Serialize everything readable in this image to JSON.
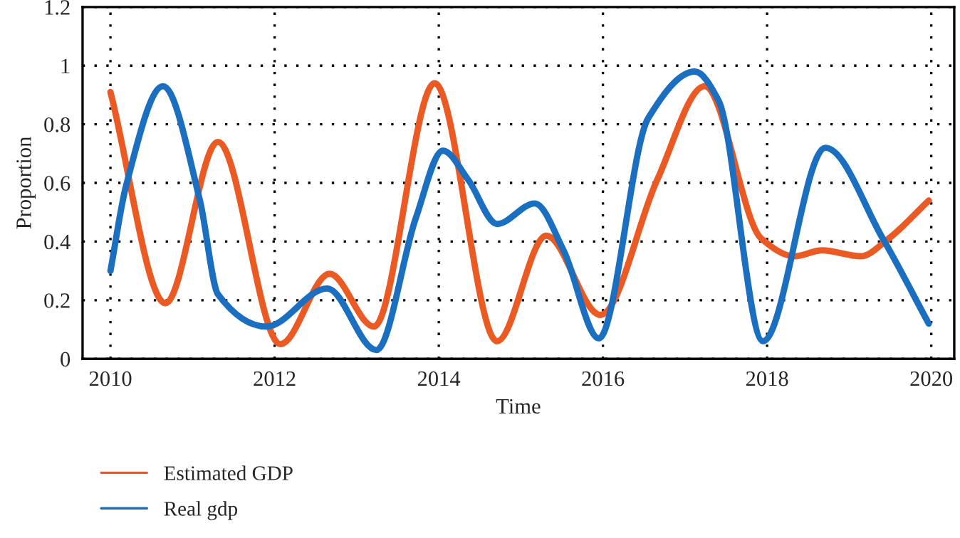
{
  "chart_data": {
    "type": "line",
    "xlabel": "Time",
    "ylabel": "Proportion",
    "xlim": [
      2009.66,
      2020.28
    ],
    "ylim": [
      0,
      1.2
    ],
    "xticks": [
      2010,
      2012,
      2014,
      2016,
      2018,
      2020
    ],
    "yticks": [
      0,
      0.2,
      0.4,
      0.6,
      0.8,
      1,
      1.2
    ],
    "grid": true,
    "legend": "bottom left",
    "line_style": "solid",
    "series": [
      {
        "name": "Estimated GDP",
        "color": "#ec5a24",
        "x": [
          2010,
          2010.67,
          2011.31,
          2012.07,
          2012.67,
          2013.21,
          2013.95,
          2014.71,
          2015.31,
          2015.97,
          2016.66,
          2017.24,
          2017.93,
          2018.33,
          2018.67,
          2019.14,
          2019.48,
          2019.97
        ],
        "values": [
          0.91,
          0.19,
          0.74,
          0.05,
          0.29,
          0.11,
          0.94,
          0.06,
          0.42,
          0.15,
          0.61,
          0.93,
          0.41,
          0.35,
          0.37,
          0.35,
          0.41,
          0.54
        ]
      },
      {
        "name": "Real gdp",
        "color": "#1a6fc0",
        "x": [
          2010,
          2010.19,
          2010.64,
          2011.09,
          2011.31,
          2011.9,
          2012.64,
          2013.24,
          2013.72,
          2014.05,
          2014.36,
          2014.71,
          2015.17,
          2015.52,
          2015.95,
          2016.55,
          2017.12,
          2017.41,
          2017.95,
          2018.71,
          2019.41,
          2019.97
        ],
        "values": [
          0.3,
          0.59,
          0.93,
          0.54,
          0.22,
          0.11,
          0.24,
          0.03,
          0.48,
          0.71,
          0.61,
          0.46,
          0.53,
          0.37,
          0.07,
          0.82,
          0.98,
          0.88,
          0.06,
          0.72,
          0.41,
          0.12
        ]
      }
    ]
  }
}
